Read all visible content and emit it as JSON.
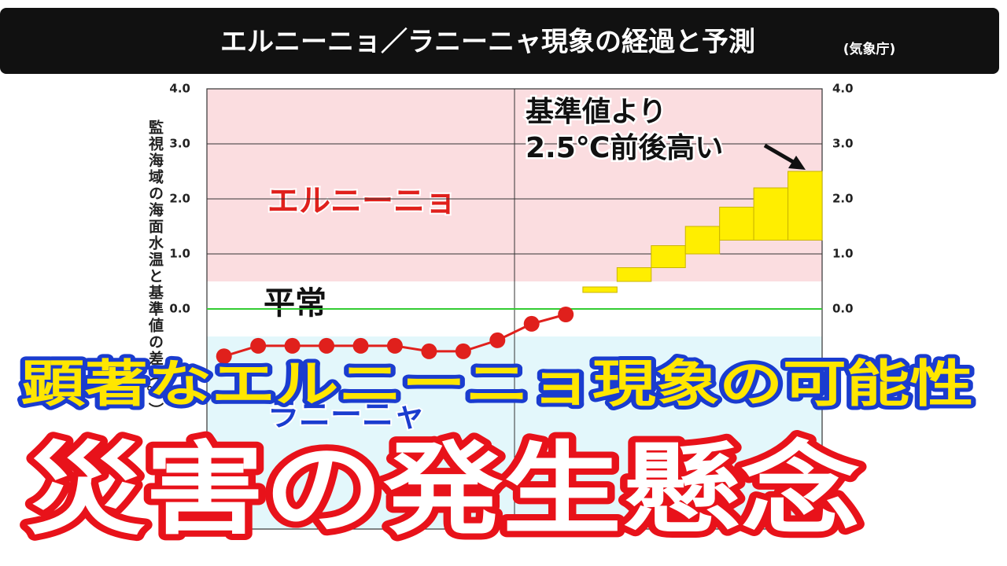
{
  "title": "エルニーニョ／ラニーニャ現象の経過と予測",
  "source": "(気象庁)",
  "chart_data": {
    "type": "line",
    "y_label": "監視海域の海面水温と基準値の差（℃）",
    "categories": [
      null,
      null,
      null,
      null,
      null,
      null,
      null,
      null,
      null,
      null,
      null,
      null,
      null,
      null,
      null,
      null,
      null,
      null
    ],
    "ylim": [
      -4,
      4
    ],
    "yticks": [
      {
        "value": 0,
        "label": "0.0"
      },
      {
        "value": 1,
        "label": "1.0"
      },
      {
        "value": 2,
        "label": "2.0"
      },
      {
        "value": 3,
        "label": "3.0"
      },
      {
        "value": 4,
        "label": "4.0"
      }
    ],
    "grid": true,
    "regions": [
      {
        "name": "エルニーニョ",
        "from": 0.5,
        "to": 4,
        "color": "#fbdde0",
        "label_color": "#e0201c"
      },
      {
        "name": "平常",
        "from": -0.5,
        "to": 0.5,
        "color": "#ffffff",
        "label_color": "#111111"
      },
      {
        "name": "ラニーニャ",
        "from": -4,
        "to": -0.5,
        "color": "#e3f7fb",
        "label_color": "#1a3ccf"
      }
    ],
    "reference_line": {
      "value": 0,
      "color": "#33cc33"
    },
    "series": [
      {
        "color": "#e0201c",
        "values": [
          -0.86,
          -0.67,
          -0.67,
          -0.67,
          -0.67,
          -0.67,
          -0.77,
          -0.77,
          -0.57,
          -0.27,
          -0.1,
          null,
          null,
          null,
          null,
          null,
          null,
          null
        ]
      }
    ],
    "forecast": {
      "color": "#ffee00",
      "low": [
        null,
        null,
        null,
        null,
        null,
        null,
        null,
        null,
        null,
        null,
        null,
        0.3,
        0.5,
        0.75,
        1.0,
        1.25,
        1.25,
        1.25
      ],
      "high": [
        null,
        null,
        null,
        null,
        null,
        null,
        null,
        null,
        null,
        null,
        null,
        0.4,
        0.75,
        1.15,
        1.5,
        1.85,
        2.2,
        2.5
      ]
    },
    "annotation": {
      "lines": [
        "基準値より",
        "2.5℃前後高い"
      ]
    }
  },
  "overlay": {
    "headline": "顕著なエルニーニョ現象の可能性",
    "main": "災害の発生懸念"
  }
}
